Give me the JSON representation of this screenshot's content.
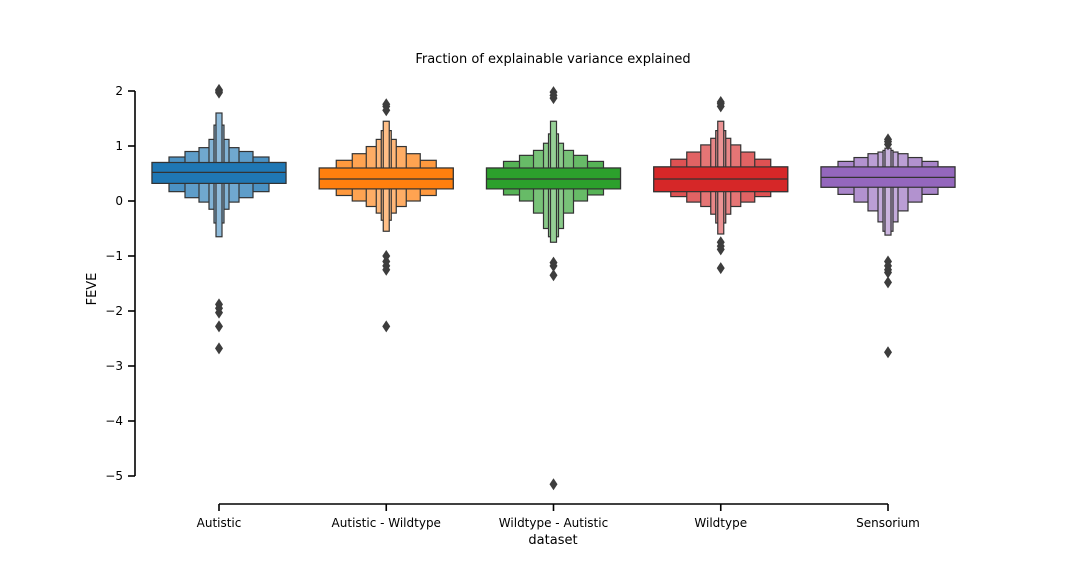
{
  "chart_data": {
    "type": "boxen",
    "title": "Fraction of explainable variance explained",
    "xlabel": "dataset",
    "ylabel": "FEVE",
    "ylim": [
      -5.5,
      2.2
    ],
    "yticks": [
      2,
      1,
      0,
      -1,
      -2,
      -3,
      -4,
      -5
    ],
    "ytick_labels": [
      "2",
      "1",
      "0",
      "−1",
      "−2",
      "−3",
      "−4",
      "−5"
    ],
    "grid": false,
    "legend": "none",
    "categories": [
      "Autistic",
      "Autistic - Wildtype",
      "Wildtype - Autistic",
      "Wildtype",
      "Sensorium"
    ],
    "series": [
      {
        "color": "#1f77b4",
        "median": 0.52,
        "levels": [
          [
            0.32,
            0.7
          ],
          [
            0.17,
            0.8
          ],
          [
            0.06,
            0.9
          ],
          [
            -0.02,
            0.97
          ],
          [
            -0.15,
            1.12
          ],
          [
            -0.4,
            1.38
          ],
          [
            -0.65,
            1.6
          ]
        ],
        "outliers": [
          2.02,
          2.0,
          1.97,
          -1.88,
          -1.95,
          -2.03,
          -2.28,
          -2.68
        ]
      },
      {
        "color": "#ff7f0e",
        "median": 0.4,
        "levels": [
          [
            0.22,
            0.6
          ],
          [
            0.1,
            0.74
          ],
          [
            0.0,
            0.86
          ],
          [
            -0.1,
            0.99
          ],
          [
            -0.22,
            1.12
          ],
          [
            -0.35,
            1.28
          ],
          [
            -0.55,
            1.45
          ]
        ],
        "outliers": [
          1.76,
          1.72,
          1.65,
          -1.0,
          -1.1,
          -1.18,
          -1.25,
          -2.28
        ]
      },
      {
        "color": "#2ca02c",
        "median": 0.4,
        "levels": [
          [
            0.22,
            0.6
          ],
          [
            0.11,
            0.72
          ],
          [
            0.0,
            0.83
          ],
          [
            -0.22,
            0.92
          ],
          [
            -0.5,
            1.05
          ],
          [
            -0.65,
            1.22
          ],
          [
            -0.75,
            1.45
          ]
        ],
        "outliers": [
          1.98,
          1.92,
          1.87,
          -1.12,
          -1.18,
          -1.35,
          -5.15
        ]
      },
      {
        "color": "#d62728",
        "median": 0.4,
        "levels": [
          [
            0.17,
            0.62
          ],
          [
            0.08,
            0.76
          ],
          [
            -0.02,
            0.89
          ],
          [
            -0.1,
            1.02
          ],
          [
            -0.24,
            1.14
          ],
          [
            -0.4,
            1.28
          ],
          [
            -0.6,
            1.45
          ]
        ],
        "outliers": [
          1.8,
          1.77,
          1.72,
          -0.75,
          -0.82,
          -0.88,
          -1.22
        ]
      },
      {
        "color": "#9467bd",
        "median": 0.43,
        "levels": [
          [
            0.25,
            0.62
          ],
          [
            0.12,
            0.72
          ],
          [
            -0.02,
            0.79
          ],
          [
            -0.18,
            0.86
          ],
          [
            -0.38,
            0.89
          ],
          [
            -0.55,
            0.92
          ],
          [
            -0.62,
            0.96
          ]
        ],
        "outliers": [
          1.12,
          1.08,
          1.03,
          -1.1,
          -1.18,
          -1.25,
          -1.3,
          -1.48,
          -2.75
        ]
      }
    ]
  }
}
